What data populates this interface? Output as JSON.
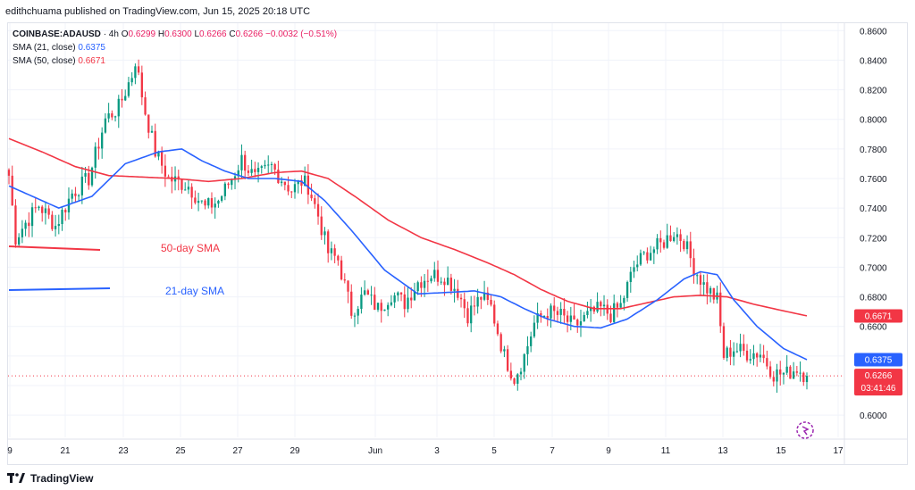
{
  "header": {
    "publisher": "edithchuama published on TradingView.com, Jun 15, 2025 20:18 UTC"
  },
  "legend": {
    "symbol": "COINBASE:ADAUSD",
    "interval": "4h",
    "open_label": "O",
    "open": "0.6299",
    "high_label": "H",
    "high": "0.6300",
    "low_label": "L",
    "low": "0.6266",
    "close_label": "C",
    "close": "0.6266",
    "change": "−0.0032 (−0.51%)",
    "sma21_label": "SMA (21, close)",
    "sma21_value": "0.6375",
    "sma50_label": "SMA (50, close)",
    "sma50_value": "0.6671"
  },
  "annotations": {
    "sma50_text": "50-day SMA",
    "sma21_text": "21-day SMA"
  },
  "footer": {
    "brand": "TradingView"
  },
  "colors": {
    "up": "#089981",
    "down": "#f23645",
    "sma21": "#2962ff",
    "sma50": "#f23645",
    "grid": "#f0f3fa",
    "axis_text": "#131722"
  },
  "chart_data": {
    "type": "candlestick",
    "ylim": [
      0.585,
      0.865
    ],
    "y_ticks": [
      "0.6000",
      "0.6200",
      "0.6400",
      "0.6600",
      "0.6800",
      "0.7000",
      "0.7200",
      "0.7400",
      "0.7600",
      "0.7800",
      "0.8000",
      "0.8200",
      "0.8400",
      "0.8600"
    ],
    "x_ticks": [
      "9",
      "21",
      "23",
      "25",
      "27",
      "29",
      "Jun",
      "3",
      "5",
      "7",
      "9",
      "11",
      "13",
      "15",
      "17"
    ],
    "price_labels": [
      {
        "name": "sma21",
        "value": 0.6375,
        "text": "0.6375",
        "color": "#2962ff"
      },
      {
        "name": "sma50",
        "value": 0.6671,
        "text": "0.6671",
        "color": "#f23645"
      },
      {
        "name": "last",
        "value": 0.6266,
        "text": "0.6266",
        "sub": "03:41:46",
        "color": "#f23645"
      }
    ],
    "last_price": 0.6266,
    "anchors": [
      [
        0,
        0.762
      ],
      [
        2,
        0.72
      ],
      [
        5,
        0.73
      ],
      [
        9,
        0.742
      ],
      [
        14,
        0.728
      ],
      [
        19,
        0.75
      ],
      [
        24,
        0.76
      ],
      [
        29,
        0.8
      ],
      [
        33,
        0.808
      ],
      [
        37,
        0.83
      ],
      [
        38,
        0.84
      ],
      [
        41,
        0.805
      ],
      [
        44,
        0.778
      ],
      [
        48,
        0.76
      ],
      [
        54,
        0.755
      ],
      [
        59,
        0.74
      ],
      [
        63,
        0.745
      ],
      [
        67,
        0.76
      ],
      [
        70,
        0.773
      ],
      [
        74,
        0.76
      ],
      [
        79,
        0.768
      ],
      [
        82,
        0.76
      ],
      [
        85,
        0.752
      ],
      [
        88,
        0.758
      ],
      [
        90,
        0.755
      ],
      [
        93,
        0.735
      ],
      [
        96,
        0.71
      ],
      [
        99,
        0.705
      ],
      [
        103,
        0.67
      ],
      [
        107,
        0.682
      ],
      [
        111,
        0.672
      ],
      [
        115,
        0.682
      ],
      [
        119,
        0.676
      ],
      [
        123,
        0.69
      ],
      [
        127,
        0.695
      ],
      [
        131,
        0.694
      ],
      [
        135,
        0.684
      ],
      [
        138,
        0.668
      ],
      [
        142,
        0.68
      ],
      [
        145,
        0.673
      ],
      [
        149,
        0.64
      ],
      [
        152,
        0.625
      ],
      [
        155,
        0.64
      ],
      [
        158,
        0.662
      ],
      [
        162,
        0.67
      ],
      [
        166,
        0.667
      ],
      [
        170,
        0.66
      ],
      [
        174,
        0.667
      ],
      [
        178,
        0.672
      ],
      [
        181,
        0.668
      ],
      [
        184,
        0.674
      ],
      [
        188,
        0.7
      ],
      [
        192,
        0.71
      ],
      [
        196,
        0.715
      ],
      [
        200,
        0.724
      ],
      [
        203,
        0.718
      ],
      [
        206,
        0.7
      ],
      [
        209,
        0.688
      ],
      [
        213,
        0.678
      ],
      [
        215,
        0.64
      ],
      [
        218,
        0.645
      ],
      [
        222,
        0.642
      ],
      [
        226,
        0.642
      ],
      [
        230,
        0.628
      ],
      [
        234,
        0.628
      ],
      [
        237,
        0.632
      ],
      [
        240,
        0.626
      ]
    ],
    "sma21": [
      [
        0,
        0.755
      ],
      [
        15,
        0.74
      ],
      [
        25,
        0.748
      ],
      [
        35,
        0.77
      ],
      [
        45,
        0.778
      ],
      [
        52,
        0.78
      ],
      [
        58,
        0.772
      ],
      [
        65,
        0.765
      ],
      [
        72,
        0.76
      ],
      [
        80,
        0.76
      ],
      [
        88,
        0.758
      ],
      [
        95,
        0.745
      ],
      [
        103,
        0.725
      ],
      [
        113,
        0.698
      ],
      [
        123,
        0.682
      ],
      [
        132,
        0.683
      ],
      [
        140,
        0.684
      ],
      [
        148,
        0.68
      ],
      [
        155,
        0.672
      ],
      [
        162,
        0.665
      ],
      [
        170,
        0.66
      ],
      [
        178,
        0.659
      ],
      [
        186,
        0.665
      ],
      [
        195,
        0.678
      ],
      [
        203,
        0.692
      ],
      [
        208,
        0.697
      ],
      [
        213,
        0.695
      ],
      [
        218,
        0.678
      ],
      [
        225,
        0.66
      ],
      [
        233,
        0.645
      ],
      [
        240,
        0.6375
      ]
    ],
    "sma50": [
      [
        0,
        0.787
      ],
      [
        10,
        0.778
      ],
      [
        20,
        0.768
      ],
      [
        30,
        0.762
      ],
      [
        40,
        0.761
      ],
      [
        50,
        0.76
      ],
      [
        60,
        0.758
      ],
      [
        70,
        0.76
      ],
      [
        80,
        0.764
      ],
      [
        88,
        0.765
      ],
      [
        96,
        0.76
      ],
      [
        104,
        0.748
      ],
      [
        114,
        0.732
      ],
      [
        124,
        0.72
      ],
      [
        134,
        0.712
      ],
      [
        144,
        0.703
      ],
      [
        152,
        0.695
      ],
      [
        160,
        0.685
      ],
      [
        168,
        0.677
      ],
      [
        176,
        0.672
      ],
      [
        184,
        0.672
      ],
      [
        192,
        0.676
      ],
      [
        200,
        0.68
      ],
      [
        208,
        0.681
      ],
      [
        216,
        0.68
      ],
      [
        224,
        0.675
      ],
      [
        232,
        0.671
      ],
      [
        240,
        0.6671
      ]
    ],
    "n_bars": 241
  }
}
